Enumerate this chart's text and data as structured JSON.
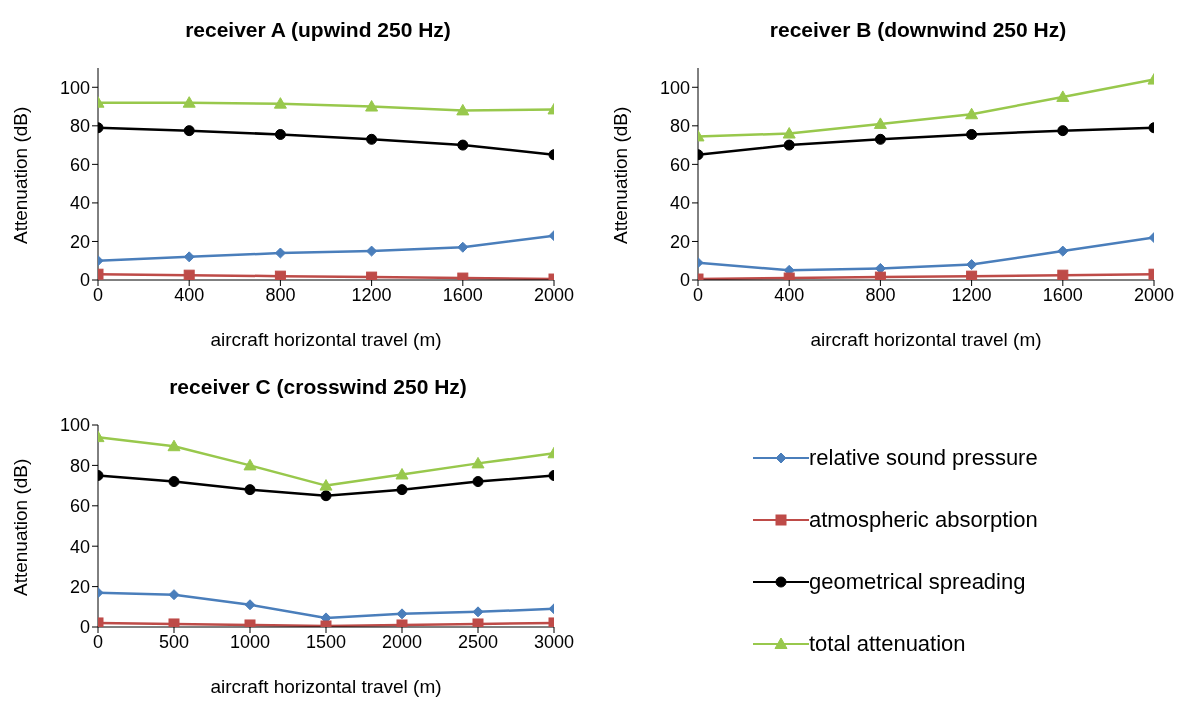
{
  "chart_data": [
    {
      "type": "line",
      "title": "receiver A (upwind 250 Hz)",
      "xlabel": "aircraft horizontal travel (m)",
      "ylabel": "Attenuation (dB)",
      "x": [
        0,
        400,
        800,
        1200,
        1600,
        2000
      ],
      "xlim": [
        0,
        2000
      ],
      "xticks": [
        0,
        400,
        800,
        1200,
        1600,
        2000
      ],
      "ylim": [
        0,
        110
      ],
      "yticks": [
        0,
        20,
        40,
        60,
        80,
        100
      ],
      "grid": false,
      "legend": false,
      "series": [
        {
          "color": "#4a7ebb",
          "marker": "diamond",
          "values": [
            10,
            12,
            14,
            15,
            17,
            23
          ]
        },
        {
          "color": "#be4b48",
          "marker": "square",
          "values": [
            3,
            2.5,
            2,
            1.5,
            1,
            0.5
          ]
        },
        {
          "color": "#000000",
          "marker": "circle",
          "values": [
            79,
            77.5,
            75.5,
            73,
            70,
            65
          ]
        },
        {
          "color": "#98c84c",
          "marker": "triangle",
          "values": [
            92,
            92,
            91.5,
            90,
            88,
            88.5
          ]
        }
      ]
    },
    {
      "type": "line",
      "title": "receiver B (downwind 250 Hz)",
      "xlabel": "aircraft horizontal travel (m)",
      "ylabel": "Attenuation (dB)",
      "x": [
        0,
        400,
        800,
        1200,
        1600,
        2000
      ],
      "xlim": [
        0,
        2000
      ],
      "xticks": [
        0,
        400,
        800,
        1200,
        1600,
        2000
      ],
      "ylim": [
        0,
        110
      ],
      "yticks": [
        0,
        20,
        40,
        60,
        80,
        100
      ],
      "grid": false,
      "legend": false,
      "series": [
        {
          "color": "#4a7ebb",
          "marker": "diamond",
          "values": [
            9,
            5,
            6,
            8,
            15,
            22
          ]
        },
        {
          "color": "#be4b48",
          "marker": "square",
          "values": [
            0.5,
            1,
            1.5,
            2,
            2.5,
            3
          ]
        },
        {
          "color": "#000000",
          "marker": "circle",
          "values": [
            65,
            70,
            73,
            75.5,
            77.5,
            79
          ]
        },
        {
          "color": "#98c84c",
          "marker": "triangle",
          "values": [
            74.5,
            76,
            81,
            86,
            95,
            104
          ]
        }
      ]
    },
    {
      "type": "line",
      "title": "receiver C (crosswind 250 Hz)",
      "xlabel": "aircraft horizontal travel (m)",
      "ylabel": "Attenuation (dB)",
      "x": [
        0,
        500,
        1000,
        1500,
        2000,
        2500,
        3000
      ],
      "xlim": [
        0,
        3000
      ],
      "xticks": [
        0,
        500,
        1000,
        1500,
        2000,
        2500,
        3000
      ],
      "ylim": [
        0,
        100
      ],
      "yticks": [
        0,
        20,
        40,
        60,
        80,
        100
      ],
      "grid": false,
      "legend": "right",
      "series": [
        {
          "name": "relative sound pressure",
          "color": "#4a7ebb",
          "marker": "diamond",
          "values": [
            17,
            16,
            11,
            4.5,
            6.5,
            7.5,
            9
          ]
        },
        {
          "name": "atmospheric absorption",
          "color": "#be4b48",
          "marker": "square",
          "values": [
            2,
            1.5,
            1,
            0.5,
            1,
            1.5,
            2
          ]
        },
        {
          "name": "geometrical spreading",
          "color": "#000000",
          "marker": "circle",
          "values": [
            75,
            72,
            68,
            65,
            68,
            72,
            75
          ]
        },
        {
          "name": "total attenuation",
          "color": "#98c84c",
          "marker": "triangle",
          "values": [
            94,
            89.5,
            80,
            70,
            75.5,
            81,
            86
          ]
        }
      ]
    }
  ]
}
